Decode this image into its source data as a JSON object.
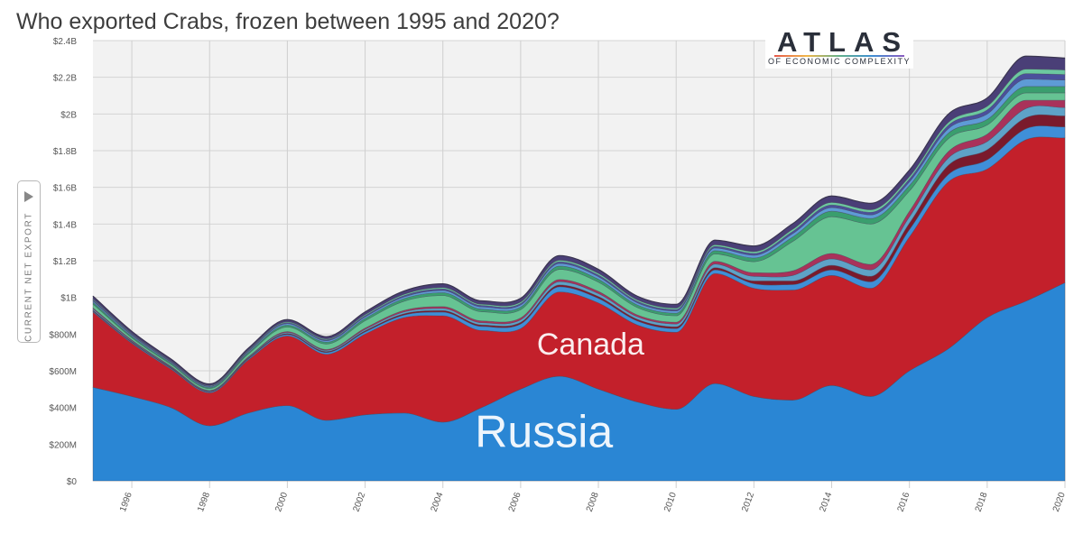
{
  "header": {
    "title": "Who exported Crabs, frozen between 1995 and 2020?"
  },
  "y_toggle": {
    "label": "CURRENT NET EXPORT",
    "icon": "play-triangle-icon"
  },
  "logo": {
    "name": "ATLAS",
    "subtitle": "OF ECONOMIC COMPLEXITY"
  },
  "chart_data": {
    "type": "area",
    "stacked": true,
    "title": "Who exported Crabs, frozen between 1995 and 2020?",
    "ylabel": "CURRENT NET EXPORT",
    "xlabel": "",
    "xlim": [
      1995,
      2020
    ],
    "ylim": [
      0,
      2400000000
    ],
    "grid": true,
    "x": [
      1995,
      1996,
      1997,
      1998,
      1999,
      2000,
      2001,
      2002,
      2003,
      2004,
      2005,
      2006,
      2007,
      2008,
      2009,
      2010,
      2011,
      2012,
      2013,
      2014,
      2015,
      2016,
      2017,
      2018,
      2019,
      2020
    ],
    "x_ticks": [
      "1996",
      "1998",
      "2000",
      "2002",
      "2004",
      "2006",
      "2008",
      "2010",
      "2012",
      "2014",
      "2016",
      "2018",
      "2020"
    ],
    "x_tick_values": [
      1996,
      1998,
      2000,
      2002,
      2004,
      2006,
      2008,
      2010,
      2012,
      2014,
      2016,
      2018,
      2020
    ],
    "y_ticks": [
      "$0",
      "$200M",
      "$400M",
      "$600M",
      "$800M",
      "$1B",
      "$1.2B",
      "$1.4B",
      "$1.6B",
      "$1.8B",
      "$2B",
      "$2.2B",
      "$2.4B"
    ],
    "y_tick_values": [
      0,
      200000000,
      400000000,
      600000000,
      800000000,
      1000000000,
      1200000000,
      1400000000,
      1600000000,
      1800000000,
      2000000000,
      2200000000,
      2400000000
    ],
    "series_colors": [
      "#2a86d4",
      "#c3202b",
      "#3f8fd8",
      "#7a1a2c",
      "#5ea2c7",
      "#a9325a",
      "#66c393",
      "#3a9e6e",
      "#5e9bd6",
      "#4b4f9c",
      "#6cc8a0",
      "#4a3f77"
    ],
    "series": [
      {
        "name": "Russia",
        "label_visible": true,
        "label_color": "#ffffff",
        "values": [
          510000000,
          460000000,
          400000000,
          300000000,
          370000000,
          410000000,
          330000000,
          360000000,
          370000000,
          320000000,
          400000000,
          500000000,
          570000000,
          500000000,
          430000000,
          390000000,
          530000000,
          460000000,
          440000000,
          520000000,
          460000000,
          600000000,
          720000000,
          890000000,
          980000000,
          1080000000
        ]
      },
      {
        "name": "Canada",
        "label_visible": true,
        "label_color": "#ffffff",
        "values": [
          410000000,
          290000000,
          210000000,
          180000000,
          290000000,
          380000000,
          360000000,
          440000000,
          520000000,
          580000000,
          420000000,
          330000000,
          460000000,
          470000000,
          420000000,
          420000000,
          600000000,
          590000000,
          600000000,
          600000000,
          590000000,
          730000000,
          910000000,
          810000000,
          880000000,
          790000000
        ]
      },
      {
        "name": "",
        "values": [
          5000000,
          5000000,
          5000000,
          5000000,
          6000000,
          8000000,
          10000000,
          12000000,
          14000000,
          20000000,
          22000000,
          25000000,
          28000000,
          25000000,
          22000000,
          20000000,
          20000000,
          25000000,
          30000000,
          30000000,
          35000000,
          40000000,
          40000000,
          50000000,
          60000000,
          60000000
        ]
      },
      {
        "name": "",
        "values": [
          5000000,
          4000000,
          4000000,
          3000000,
          4000000,
          5000000,
          5000000,
          6000000,
          7000000,
          8000000,
          8000000,
          9000000,
          10000000,
          10000000,
          9000000,
          10000000,
          12000000,
          15000000,
          20000000,
          25000000,
          30000000,
          35000000,
          50000000,
          55000000,
          60000000,
          60000000
        ]
      },
      {
        "name": "",
        "values": [
          8000000,
          5000000,
          4000000,
          3000000,
          4000000,
          6000000,
          6000000,
          8000000,
          10000000,
          12000000,
          12000000,
          14000000,
          18000000,
          16000000,
          14000000,
          15000000,
          20000000,
          25000000,
          30000000,
          35000000,
          35000000,
          35000000,
          40000000,
          45000000,
          50000000,
          45000000
        ]
      },
      {
        "name": "",
        "values": [
          5000000,
          4000000,
          3000000,
          2000000,
          3000000,
          5000000,
          5000000,
          7000000,
          8000000,
          10000000,
          10000000,
          10000000,
          12000000,
          12000000,
          10000000,
          10000000,
          15000000,
          20000000,
          25000000,
          30000000,
          30000000,
          30000000,
          35000000,
          40000000,
          45000000,
          40000000
        ]
      },
      {
        "name": "",
        "values": [
          20000000,
          12000000,
          10000000,
          10000000,
          15000000,
          25000000,
          30000000,
          40000000,
          50000000,
          60000000,
          50000000,
          45000000,
          55000000,
          50000000,
          40000000,
          35000000,
          40000000,
          60000000,
          160000000,
          200000000,
          220000000,
          110000000,
          70000000,
          50000000,
          40000000,
          40000000
        ]
      },
      {
        "name": "",
        "values": [
          10000000,
          8000000,
          7000000,
          6000000,
          8000000,
          10000000,
          10000000,
          12000000,
          14000000,
          16000000,
          14000000,
          14000000,
          18000000,
          16000000,
          14000000,
          14000000,
          18000000,
          20000000,
          25000000,
          30000000,
          30000000,
          30000000,
          30000000,
          30000000,
          35000000,
          35000000
        ]
      },
      {
        "name": "",
        "values": [
          8000000,
          6000000,
          5000000,
          5000000,
          6000000,
          8000000,
          8000000,
          9000000,
          10000000,
          12000000,
          12000000,
          12000000,
          14000000,
          14000000,
          12000000,
          12000000,
          14000000,
          15000000,
          18000000,
          20000000,
          20000000,
          20000000,
          25000000,
          30000000,
          40000000,
          35000000
        ]
      },
      {
        "name": "",
        "values": [
          6000000,
          5000000,
          4000000,
          3000000,
          4000000,
          5000000,
          5000000,
          6000000,
          7000000,
          8000000,
          8000000,
          8000000,
          9000000,
          9000000,
          8000000,
          8000000,
          9000000,
          10000000,
          12000000,
          14000000,
          14000000,
          15000000,
          18000000,
          22000000,
          30000000,
          30000000
        ]
      },
      {
        "name": "",
        "values": [
          5000000,
          4000000,
          3000000,
          3000000,
          4000000,
          5000000,
          5000000,
          6000000,
          7000000,
          8000000,
          7000000,
          8000000,
          9000000,
          9000000,
          8000000,
          8000000,
          9000000,
          10000000,
          12000000,
          14000000,
          14000000,
          14000000,
          16000000,
          20000000,
          25000000,
          25000000
        ]
      },
      {
        "name": "",
        "values": [
          15000000,
          12000000,
          10000000,
          8000000,
          10000000,
          12000000,
          12000000,
          15000000,
          18000000,
          20000000,
          18000000,
          20000000,
          25000000,
          22000000,
          20000000,
          20000000,
          25000000,
          30000000,
          30000000,
          35000000,
          35000000,
          35000000,
          45000000,
          45000000,
          70000000,
          65000000
        ]
      }
    ]
  }
}
